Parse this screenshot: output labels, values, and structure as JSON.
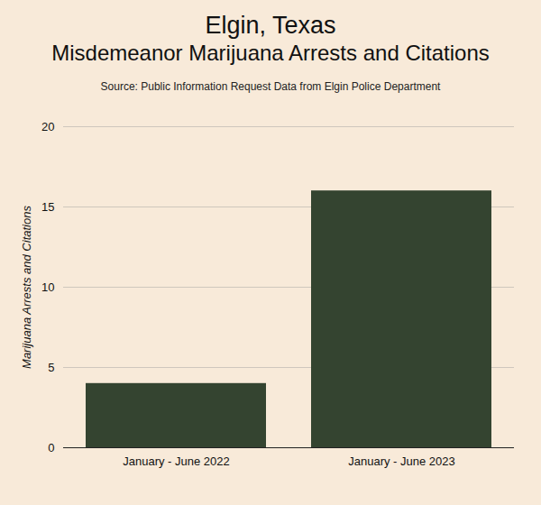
{
  "chart_data": {
    "type": "bar",
    "title": "Elgin, Texas",
    "subtitle": "Misdemeanor Marijuana Arrests and Citations",
    "source": "Source: Public Information Request Data from Elgin Police Department",
    "y_label": "Marijuana Arrests and Citations",
    "categories": [
      "January - June 2022",
      "January - June 2023"
    ],
    "values": [
      4,
      16
    ],
    "color": "#344430",
    "ylim": [
      0,
      20
    ],
    "yticks": [
      0,
      5,
      10,
      15,
      20
    ],
    "grid": true
  }
}
